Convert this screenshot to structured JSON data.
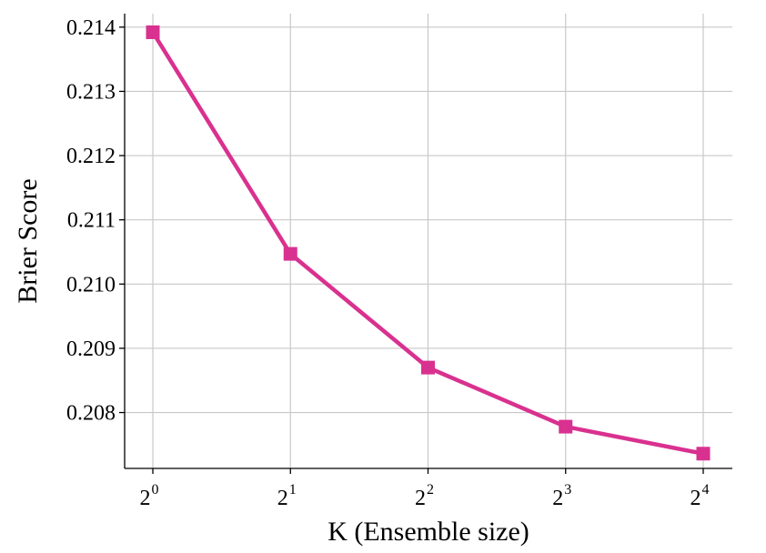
{
  "chart_data": {
    "type": "line",
    "xlabel": "K (Ensemble size)",
    "ylabel": "Brier Score",
    "x_scale": "log2",
    "x_ticks": [
      {
        "value": 1,
        "base": "2",
        "exp": "0"
      },
      {
        "value": 2,
        "base": "2",
        "exp": "1"
      },
      {
        "value": 4,
        "base": "2",
        "exp": "2"
      },
      {
        "value": 8,
        "base": "2",
        "exp": "3"
      },
      {
        "value": 16,
        "base": "2",
        "exp": "4"
      }
    ],
    "y_ticks": [
      "0.208",
      "0.209",
      "0.210",
      "0.211",
      "0.212",
      "0.213",
      "0.214"
    ],
    "ylim": [
      0.20713,
      0.21421
    ],
    "grid": true,
    "series": [
      {
        "x": [
          1,
          2,
          4,
          8,
          16
        ],
        "y": [
          0.21392,
          0.21047,
          0.2087,
          0.20778,
          0.20736
        ],
        "color": "#d9318f",
        "marker": "square"
      }
    ]
  }
}
